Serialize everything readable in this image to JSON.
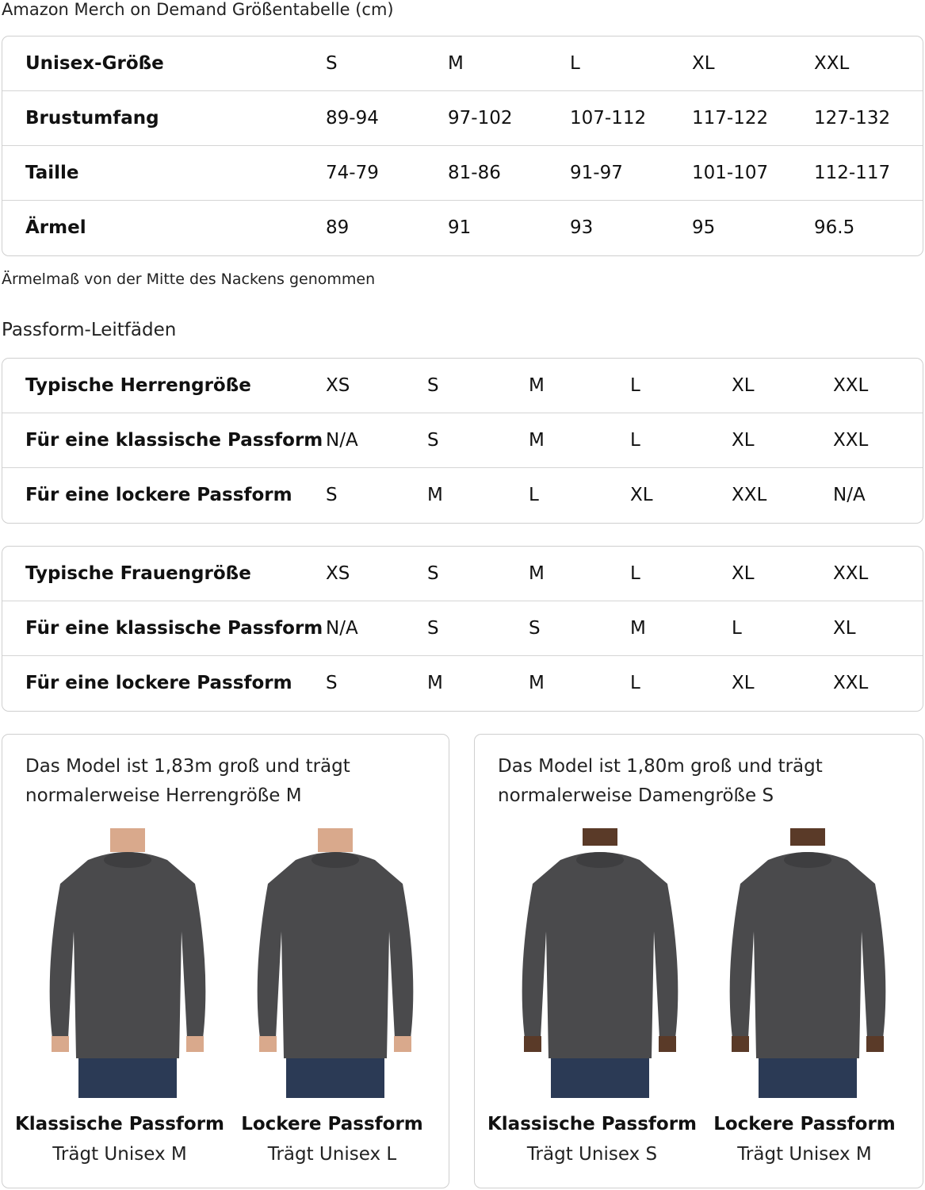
{
  "title": "Amazon Merch on Demand Größentabelle (cm)",
  "unisex_table": {
    "rows": [
      {
        "label": "Unisex-Größe",
        "values": [
          "S",
          "M",
          "L",
          "XL",
          "XXL"
        ]
      },
      {
        "label": "Brustumfang",
        "values": [
          "89-94",
          "97-102",
          "107-112",
          "117-122",
          "127-132"
        ]
      },
      {
        "label": "Taille",
        "values": [
          "74-79",
          "81-86",
          "91-97",
          "101-107",
          "112-117"
        ]
      },
      {
        "label": "Ärmel",
        "values": [
          "89",
          "91",
          "93",
          "95",
          "96.5"
        ]
      }
    ]
  },
  "note": "Ärmelmaß von der Mitte des Nackens genommen",
  "fit_heading": "Passform-Leitfäden",
  "men_table": {
    "rows": [
      {
        "label": "Typische Herrengröße",
        "values": [
          "XS",
          "S",
          "M",
          "L",
          "XL",
          "XXL"
        ]
      },
      {
        "label": "Für eine klassische Passform",
        "values": [
          "N/A",
          "S",
          "M",
          "L",
          "XL",
          "XXL"
        ]
      },
      {
        "label": "Für eine lockere Passform",
        "values": [
          "S",
          "M",
          "L",
          "XL",
          "XXL",
          "N/A"
        ]
      }
    ]
  },
  "women_table": {
    "rows": [
      {
        "label": "Typische Frauengröße",
        "values": [
          "XS",
          "S",
          "M",
          "L",
          "XL",
          "XXL"
        ]
      },
      {
        "label": "Für eine klassische Passform",
        "values": [
          "N/A",
          "S",
          "S",
          "M",
          "L",
          "XL"
        ]
      },
      {
        "label": "Für eine lockere Passform",
        "values": [
          "S",
          "M",
          "M",
          "L",
          "XL",
          "XXL"
        ]
      }
    ]
  },
  "cards": [
    {
      "caption": [
        "Das Model ist 1,83m groß und trägt",
        "normalerweise Herrengröße M"
      ],
      "figures": [
        {
          "label": "Klassische Passform",
          "sub": "Trägt Unisex M"
        },
        {
          "label": "Lockere Passform",
          "sub": "Trägt Unisex L"
        }
      ]
    },
    {
      "caption": [
        "Das Model ist 1,80m groß und trägt",
        "normalerweise Damengröße S"
      ],
      "figures": [
        {
          "label": "Klassische Passform",
          "sub": "Trägt Unisex S"
        },
        {
          "label": "Lockere Passform",
          "sub": "Trägt Unisex M"
        }
      ]
    }
  ],
  "colors": {
    "sweater": "#4a4a4c",
    "jeans": "#2b3a55",
    "border": "#cfcfcf"
  }
}
